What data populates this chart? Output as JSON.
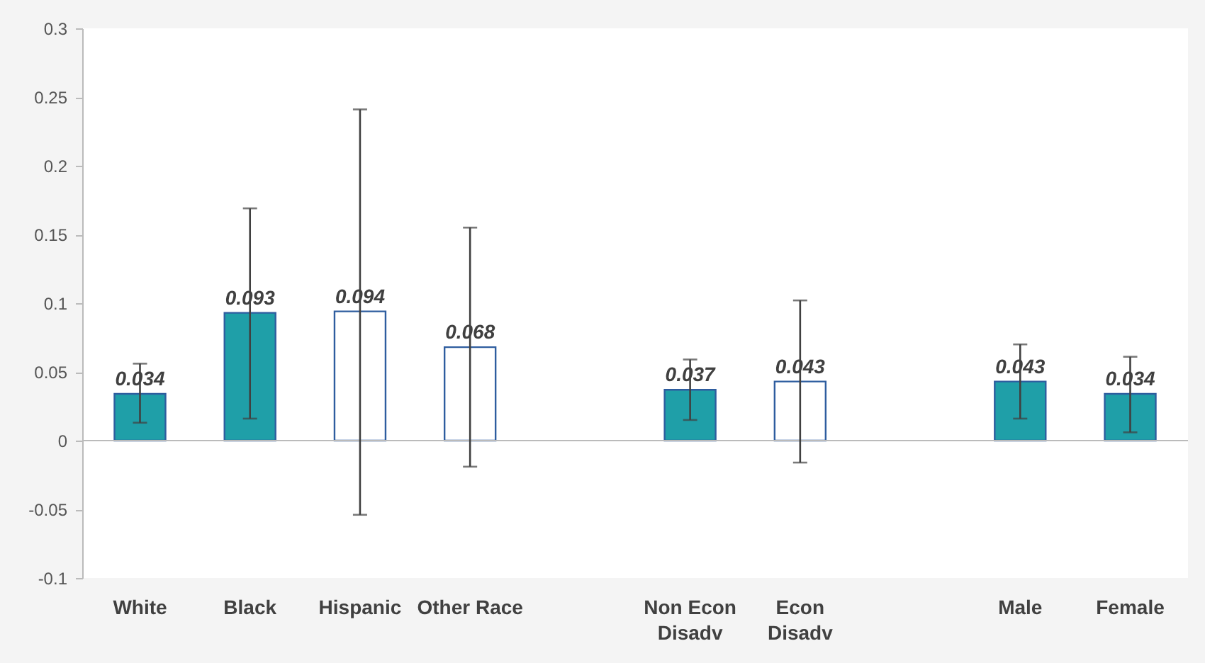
{
  "chart_data": {
    "type": "bar",
    "categories": [
      "White",
      "Black",
      "Hispanic",
      "Other Race",
      null,
      "Non Econ Disadv",
      "Econ Disadv",
      null,
      "Male",
      "Female"
    ],
    "values": [
      0.034,
      0.093,
      0.094,
      0.068,
      null,
      0.037,
      0.043,
      null,
      0.043,
      0.034
    ],
    "colors": [
      "#1f9fa8",
      "#1f9fa8",
      "#ffffff",
      "#ffffff",
      null,
      "#1f9fa8",
      "#ffffff",
      null,
      "#1f9fa8",
      "#1f9fa8"
    ],
    "errors": [
      [
        0.013,
        0.056
      ],
      [
        0.016,
        0.169
      ],
      [
        -0.054,
        0.241
      ],
      [
        -0.019,
        0.155
      ],
      null,
      [
        0.015,
        0.059
      ],
      [
        -0.016,
        0.102
      ],
      null,
      [
        0.016,
        0.07
      ],
      [
        0.006,
        0.061
      ]
    ],
    "ylim": [
      -0.1,
      0.3
    ],
    "yticks": [
      -0.1,
      -0.05,
      0,
      0.05,
      0.1,
      0.15,
      0.2,
      0.25,
      0.3
    ],
    "data_labels": true,
    "grid": false
  }
}
